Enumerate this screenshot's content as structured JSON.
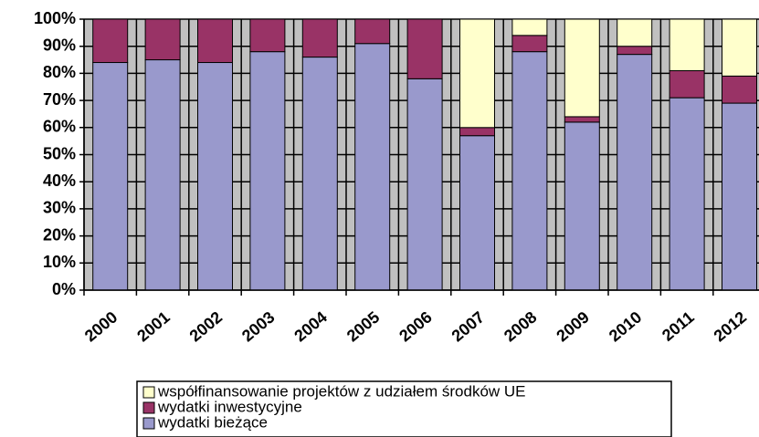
{
  "chart_data": {
    "type": "stacked_bar",
    "categories": [
      "2000",
      "2001",
      "2002",
      "2003",
      "2004",
      "2005",
      "2006",
      "2007",
      "2008",
      "2009",
      "2010",
      "2011",
      "2012"
    ],
    "series": [
      {
        "name": "wydatki bieżące",
        "color": "#9999cc",
        "values": [
          84,
          85,
          84,
          88,
          86,
          91,
          78,
          57,
          88,
          62,
          87,
          71,
          69
        ]
      },
      {
        "name": "wydatki inwestycyjne",
        "color": "#993366",
        "values": [
          16,
          15,
          16,
          12,
          14,
          9,
          22,
          3,
          6,
          2,
          3,
          10,
          10
        ]
      },
      {
        "name": "współfinansowanie projektów z udziałem środków UE",
        "color": "#ffffcc",
        "values": [
          0,
          0,
          0,
          0,
          0,
          0,
          0,
          40,
          6,
          36,
          10,
          19,
          21
        ]
      }
    ],
    "ylim": [
      0,
      100
    ],
    "yticks": [
      {
        "value": 0,
        "label": "0%"
      },
      {
        "value": 10,
        "label": "10%"
      },
      {
        "value": 20,
        "label": "20%"
      },
      {
        "value": 30,
        "label": "30%"
      },
      {
        "value": 40,
        "label": "40%"
      },
      {
        "value": 50,
        "label": "50%"
      },
      {
        "value": 60,
        "label": "60%"
      },
      {
        "value": 70,
        "label": "70%"
      },
      {
        "value": 80,
        "label": "80%"
      },
      {
        "value": 90,
        "label": "90%"
      },
      {
        "value": 100,
        "label": "100%"
      }
    ],
    "grid": true
  }
}
